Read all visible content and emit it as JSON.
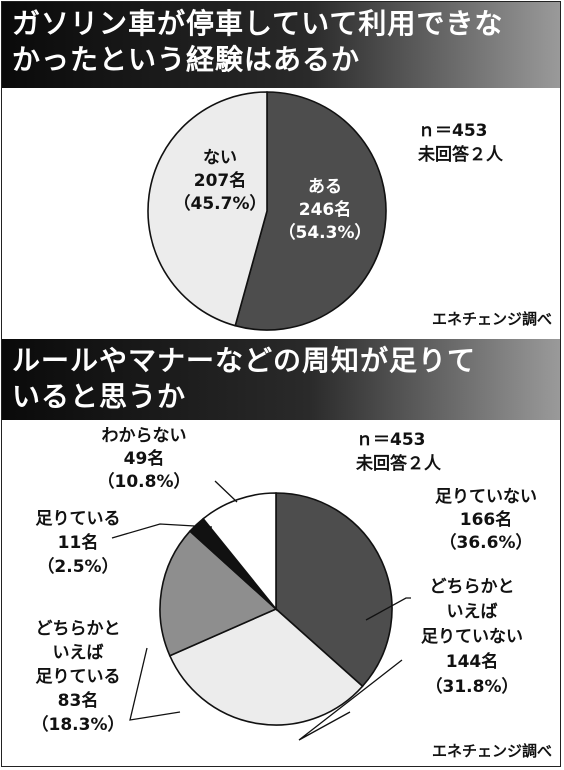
{
  "charts": [
    {
      "header": [
        "ガソリン車が停車していて利用できな",
        "かったという経験はあるか"
      ],
      "n": "ｎ＝453",
      "missing": "未回答２人",
      "source": "エネチェンジ調べ"
    },
    {
      "header": [
        "ルールやマナーなどの周知が足りて",
        "いると思うか"
      ],
      "n": "ｎ＝453",
      "missing": "未回答２人",
      "source": "エネチェンジ調べ"
    }
  ],
  "chart_data": [
    {
      "type": "pie",
      "title": "ガソリン車が停車していて利用できなかったという経験はあるか",
      "slices": [
        {
          "name": "ある",
          "count": "246名",
          "pct": "（54.3%）",
          "value": 54.3,
          "color": "#4d4d4d",
          "text_color": "#ffffff"
        },
        {
          "name": "ない",
          "count": "207名",
          "pct": "（45.7%）",
          "value": 45.7,
          "color": "#ececec",
          "text_color": "#111111"
        }
      ]
    },
    {
      "type": "pie",
      "title": "ルールやマナーなどの周知が足りていると思うか",
      "slices": [
        {
          "name": "足りていない",
          "count": "166名",
          "pct": "（36.6%）",
          "value": 36.6,
          "color": "#4d4d4d",
          "text_color": "#111111"
        },
        {
          "name": "どちらかといえば足りていない",
          "lines": [
            "どちらかと",
            "いえば",
            "足りていない"
          ],
          "count": "144名",
          "pct": "（31.8%）",
          "value": 31.8,
          "color": "#ececec",
          "text_color": "#111111"
        },
        {
          "name": "どちらかといえば足りている",
          "lines": [
            "どちらかと",
            "いえば",
            "足りている"
          ],
          "count": "83名",
          "pct": "（18.3%）",
          "value": 18.3,
          "color": "#8e8e8e",
          "text_color": "#111111"
        },
        {
          "name": "足りている",
          "count": "11名",
          "pct": "（2.5%）",
          "value": 2.5,
          "color": "#111111",
          "text_color": "#111111"
        },
        {
          "name": "わからない",
          "count": "49名",
          "pct": "（10.8%）",
          "value": 10.8,
          "color": "#ffffff",
          "text_color": "#111111"
        }
      ]
    }
  ]
}
